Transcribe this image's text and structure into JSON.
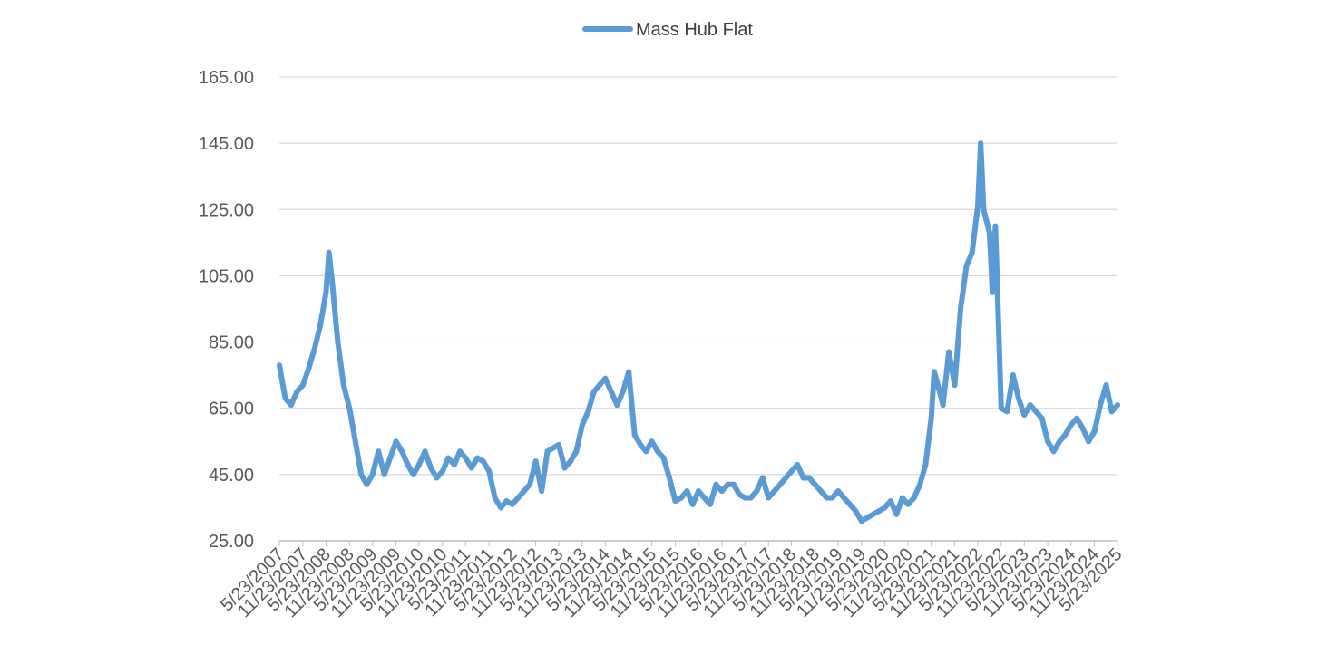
{
  "chart_data": {
    "type": "line",
    "title": "",
    "xlabel": "",
    "ylabel": "",
    "ylim": [
      25,
      165
    ],
    "yticks": [
      "25.00",
      "45.00",
      "65.00",
      "85.00",
      "105.00",
      "125.00",
      "145.00",
      "165.00"
    ],
    "xticks": [
      "5/23/2007",
      "11/23/2007",
      "5/23/2008",
      "11/23/2008",
      "5/23/2009",
      "11/23/2009",
      "5/23/2010",
      "11/23/2010",
      "5/23/2011",
      "11/23/2011",
      "5/23/2012",
      "11/23/2012",
      "5/23/2013",
      "11/23/2013",
      "5/23/2014",
      "11/23/2014",
      "5/23/2015",
      "11/23/2015",
      "5/23/2016",
      "11/23/2016",
      "5/23/2017",
      "11/23/2017",
      "5/23/2018",
      "11/23/2018",
      "5/23/2019",
      "11/23/2019",
      "5/23/2020",
      "11/23/2020",
      "5/23/2021",
      "11/23/2021",
      "5/23/2022",
      "11/23/2022",
      "5/23/2023",
      "11/23/2023",
      "5/23/2024",
      "11/23/2024",
      "5/23/2025"
    ],
    "grid": "horizontal",
    "legend_position": "top-center",
    "colors": {
      "series": "#5b9bd5",
      "grid": "#d9d9d9",
      "axis": "#bfbfbf",
      "text": "#595959"
    },
    "series": [
      {
        "name": "Mass Hub Flat",
        "x": [
          "5/23/2007",
          "7/8/2007",
          "8/23/2007",
          "10/8/2007",
          "11/23/2007",
          "1/8/2008",
          "2/23/2008",
          "4/8/2008",
          "5/23/2008",
          "6/15/2008",
          "7/8/2008",
          "8/23/2008",
          "10/8/2008",
          "11/23/2008",
          "1/8/2009",
          "2/23/2009",
          "4/8/2009",
          "5/23/2009",
          "7/8/2009",
          "8/23/2009",
          "10/8/2009",
          "11/23/2009",
          "1/8/2010",
          "2/23/2010",
          "4/8/2010",
          "5/23/2010",
          "7/8/2010",
          "8/23/2010",
          "10/8/2010",
          "11/23/2010",
          "1/8/2011",
          "2/23/2011",
          "4/8/2011",
          "5/23/2011",
          "7/8/2011",
          "8/23/2011",
          "10/8/2011",
          "11/23/2011",
          "1/8/2012",
          "2/23/2012",
          "4/8/2012",
          "5/23/2012",
          "7/8/2012",
          "8/23/2012",
          "10/8/2012",
          "11/23/2012",
          "1/8/2013",
          "2/23/2013",
          "4/8/2013",
          "5/23/2013",
          "7/8/2013",
          "8/23/2013",
          "10/8/2013",
          "11/23/2013",
          "1/8/2014",
          "2/23/2014",
          "4/8/2014",
          "5/23/2014",
          "7/8/2014",
          "8/23/2014",
          "10/8/2014",
          "11/23/2014",
          "1/8/2015",
          "2/23/2015",
          "4/8/2015",
          "5/23/2015",
          "7/8/2015",
          "8/23/2015",
          "10/8/2015",
          "11/23/2015",
          "1/8/2016",
          "2/23/2016",
          "4/8/2016",
          "5/23/2016",
          "7/8/2016",
          "8/23/2016",
          "10/8/2016",
          "11/23/2016",
          "1/8/2017",
          "2/23/2017",
          "4/8/2017",
          "5/23/2017",
          "7/8/2017",
          "8/23/2017",
          "10/8/2017",
          "11/23/2017",
          "1/8/2018",
          "2/23/2018",
          "4/8/2018",
          "5/23/2018",
          "7/8/2018",
          "8/23/2018",
          "10/8/2018",
          "11/23/2018",
          "1/8/2019",
          "2/23/2019",
          "4/8/2019",
          "5/23/2019",
          "7/8/2019",
          "8/23/2019",
          "10/8/2019",
          "11/23/2019",
          "1/8/2020",
          "2/23/2020",
          "4/8/2020",
          "5/23/2020",
          "7/8/2020",
          "8/23/2020",
          "10/8/2020",
          "11/23/2020",
          "1/8/2021",
          "2/23/2021",
          "4/8/2021",
          "5/23/2021",
          "6/15/2021",
          "7/8/2021",
          "8/23/2021",
          "10/8/2021",
          "11/23/2021",
          "1/8/2022",
          "2/23/2022",
          "4/8/2022",
          "5/23/2022",
          "6/15/2022",
          "7/8/2022",
          "8/23/2022",
          "9/15/2022",
          "10/8/2022",
          "11/23/2022",
          "1/8/2023",
          "2/23/2023",
          "4/8/2023",
          "5/23/2023",
          "7/8/2023",
          "8/23/2023",
          "10/8/2023",
          "11/23/2023",
          "1/8/2024",
          "2/23/2024",
          "4/8/2024",
          "5/23/2024",
          "7/8/2024",
          "8/23/2024",
          "10/8/2024",
          "11/23/2024",
          "1/8/2025",
          "2/23/2025",
          "4/8/2025",
          "5/23/2025"
        ],
        "y": [
          78,
          68,
          66,
          70,
          72,
          77,
          83,
          90,
          100,
          112,
          104,
          85,
          72,
          65,
          55,
          45,
          42,
          45,
          52,
          45,
          50,
          55,
          52,
          48,
          45,
          48,
          52,
          47,
          44,
          46,
          50,
          48,
          52,
          50,
          47,
          50,
          49,
          46,
          38,
          35,
          37,
          36,
          38,
          40,
          42,
          49,
          40,
          52,
          53,
          54,
          47,
          49,
          52,
          60,
          64,
          70,
          72,
          74,
          70,
          66,
          70,
          76,
          57,
          54,
          52,
          55,
          52,
          50,
          44,
          37,
          38,
          40,
          36,
          40,
          38,
          36,
          42,
          40,
          42,
          42,
          39,
          38,
          38,
          40,
          44,
          38,
          40,
          42,
          44,
          46,
          48,
          44,
          44,
          42,
          40,
          38,
          38,
          40,
          38,
          36,
          34,
          31,
          32,
          33,
          34,
          35,
          37,
          33,
          38,
          36,
          38,
          42,
          48,
          62,
          76,
          73,
          66,
          82,
          72,
          95,
          108,
          112,
          126,
          145,
          125,
          118,
          100,
          120,
          65,
          64,
          75,
          68,
          63,
          66,
          64,
          62,
          55,
          52,
          55,
          57,
          60,
          62,
          59,
          55,
          58,
          66,
          72,
          64,
          66
        ]
      }
    ]
  }
}
